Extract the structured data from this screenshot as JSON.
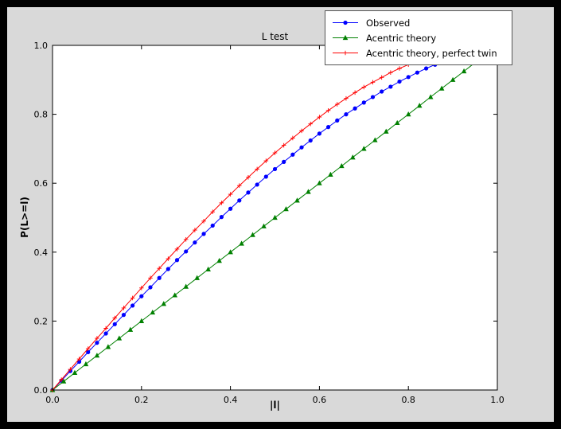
{
  "figure": {
    "title": "L test",
    "xlabel": "|l|",
    "ylabel": "P(L>=l)"
  },
  "colors": {
    "window_frame": "#000000",
    "figure_bg": "#d9d9d9",
    "axes_bg": "#ffffff",
    "axes_edge": "#000000",
    "observed": "#0000ff",
    "acentric_theory": "#008000",
    "perfect_twin": "#ff0000"
  },
  "chart_data": {
    "type": "line",
    "title": "L test",
    "xlabel": "|l|",
    "ylabel": "P(L>=l)",
    "xlim": [
      0,
      1
    ],
    "ylim": [
      0,
      1
    ],
    "grid": false,
    "legend_position": "upper right (overlapping top of axes)",
    "xticks": {
      "values": [
        0,
        0.2,
        0.4,
        0.6,
        0.8,
        1.0
      ],
      "labels": [
        "0.0",
        "0.2",
        "0.4",
        "0.6",
        "0.8",
        "1.0"
      ]
    },
    "yticks": {
      "values": [
        0,
        0.2,
        0.4,
        0.6,
        0.8,
        1.0
      ],
      "labels": [
        "0.0",
        "0.2",
        "0.4",
        "0.6",
        "0.8",
        "1.0"
      ]
    },
    "series": [
      {
        "name": "Observed",
        "color": "#0000ff",
        "marker": "circle",
        "x": [
          0,
          0.02,
          0.04,
          0.06,
          0.08,
          0.1,
          0.12,
          0.14,
          0.16,
          0.18,
          0.2,
          0.22,
          0.24,
          0.26,
          0.28,
          0.3,
          0.32,
          0.34,
          0.36,
          0.38,
          0.4,
          0.42,
          0.44,
          0.46,
          0.48,
          0.5,
          0.52,
          0.54,
          0.56,
          0.58,
          0.6,
          0.62,
          0.64,
          0.66,
          0.68,
          0.7,
          0.72,
          0.74,
          0.76,
          0.78,
          0.8,
          0.82,
          0.84,
          0.86
        ],
        "y": [
          0,
          0.027,
          0.055,
          0.082,
          0.11,
          0.137,
          0.164,
          0.191,
          0.218,
          0.245,
          0.272,
          0.298,
          0.325,
          0.351,
          0.377,
          0.402,
          0.428,
          0.453,
          0.477,
          0.502,
          0.526,
          0.55,
          0.573,
          0.596,
          0.619,
          0.641,
          0.662,
          0.683,
          0.704,
          0.724,
          0.744,
          0.763,
          0.782,
          0.8,
          0.817,
          0.834,
          0.85,
          0.866,
          0.88,
          0.895,
          0.908,
          0.921,
          0.933,
          0.944
        ]
      },
      {
        "name": "Acentric theory",
        "color": "#008000",
        "marker": "triangle_up",
        "x": [
          0,
          0.025,
          0.05,
          0.075,
          0.1,
          0.125,
          0.15,
          0.175,
          0.2,
          0.225,
          0.25,
          0.275,
          0.3,
          0.325,
          0.35,
          0.375,
          0.4,
          0.425,
          0.45,
          0.475,
          0.5,
          0.525,
          0.55,
          0.575,
          0.6,
          0.625,
          0.65,
          0.675,
          0.7,
          0.725,
          0.75,
          0.775,
          0.8,
          0.825,
          0.85,
          0.875,
          0.9,
          0.925,
          0.95,
          0.975
        ],
        "y": [
          0,
          0.025,
          0.05,
          0.075,
          0.1,
          0.125,
          0.15,
          0.175,
          0.2,
          0.225,
          0.25,
          0.275,
          0.3,
          0.325,
          0.35,
          0.375,
          0.4,
          0.425,
          0.45,
          0.475,
          0.5,
          0.525,
          0.55,
          0.575,
          0.6,
          0.625,
          0.65,
          0.675,
          0.7,
          0.725,
          0.75,
          0.775,
          0.8,
          0.825,
          0.85,
          0.875,
          0.9,
          0.925,
          0.95,
          0.975
        ]
      },
      {
        "name": "Acentric theory, perfect twin",
        "color": "#ff0000",
        "marker": "plus",
        "x": [
          0,
          0.02,
          0.04,
          0.06,
          0.08,
          0.1,
          0.12,
          0.14,
          0.16,
          0.18,
          0.2,
          0.22,
          0.24,
          0.26,
          0.28,
          0.3,
          0.32,
          0.34,
          0.36,
          0.38,
          0.4,
          0.42,
          0.44,
          0.46,
          0.48,
          0.5,
          0.52,
          0.54,
          0.56,
          0.58,
          0.6,
          0.62,
          0.64,
          0.66,
          0.68,
          0.7,
          0.72,
          0.74,
          0.76,
          0.78,
          0.8,
          0.82,
          0.84,
          0.86,
          0.88,
          0.9
        ],
        "y": [
          0,
          0.03,
          0.06,
          0.09,
          0.12,
          0.15,
          0.179,
          0.209,
          0.238,
          0.267,
          0.296,
          0.325,
          0.353,
          0.381,
          0.409,
          0.437,
          0.464,
          0.49,
          0.517,
          0.543,
          0.568,
          0.593,
          0.617,
          0.641,
          0.665,
          0.688,
          0.71,
          0.731,
          0.752,
          0.772,
          0.792,
          0.811,
          0.829,
          0.846,
          0.863,
          0.879,
          0.893,
          0.907,
          0.921,
          0.933,
          0.944,
          0.954,
          0.964,
          0.972,
          0.979,
          0.986
        ]
      }
    ]
  }
}
